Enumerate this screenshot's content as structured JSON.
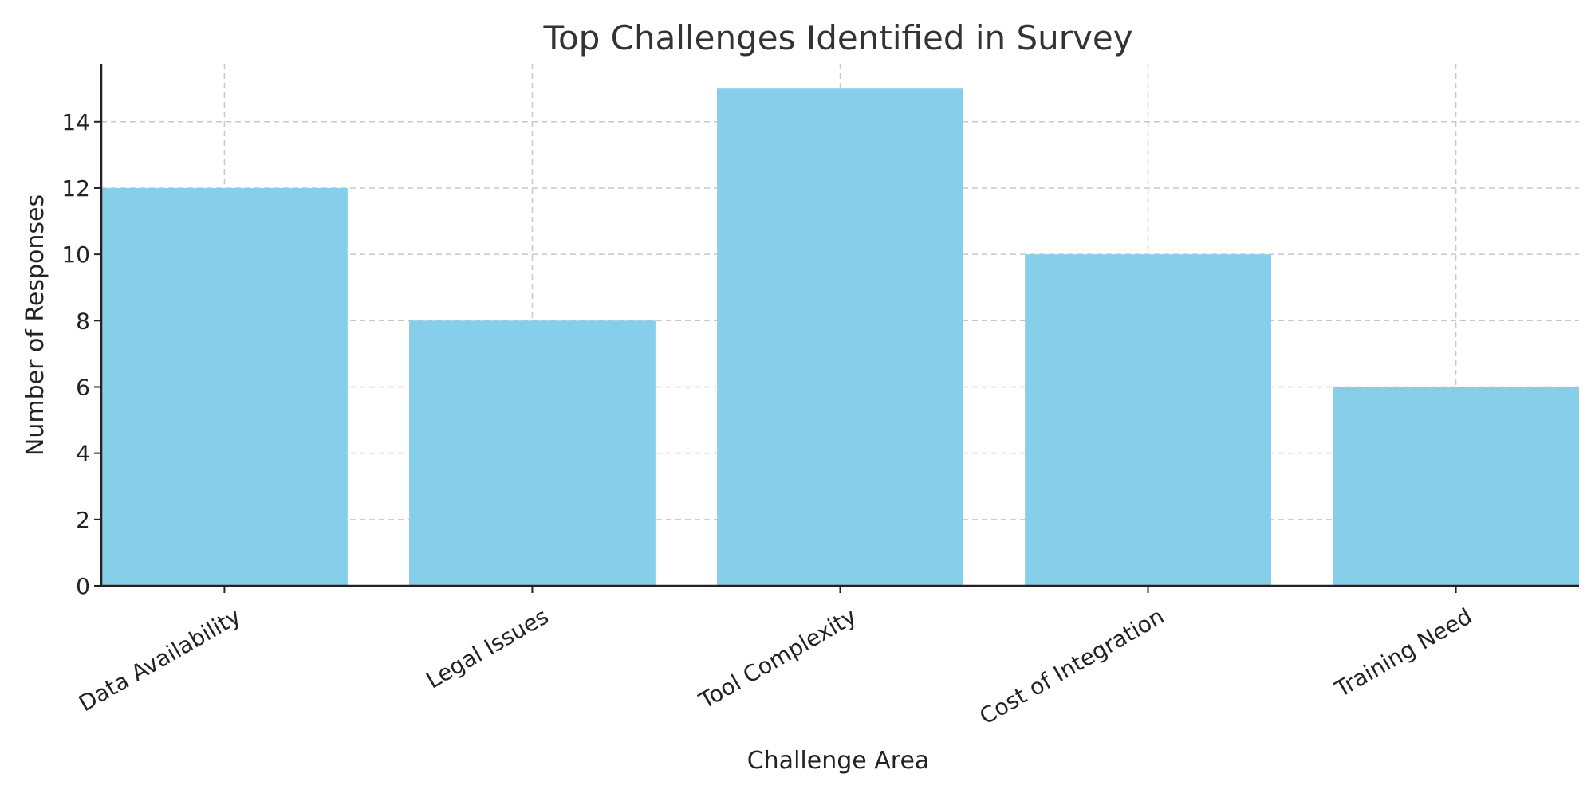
{
  "chart_data": {
    "type": "bar",
    "title": "Top Challenges Identified in Survey",
    "xlabel": "Challenge Area",
    "ylabel": "Number of Responses",
    "categories": [
      "Data Availability",
      "Legal Issues",
      "Tool Complexity",
      "Cost of Integration",
      "Training Need"
    ],
    "values": [
      12,
      8,
      15,
      10,
      6
    ],
    "ylim": [
      0,
      15.75
    ],
    "yticks": [
      0,
      2,
      4,
      6,
      8,
      10,
      12,
      14
    ],
    "grid": true,
    "bar_color": "#87CEEB",
    "xtick_rotation_deg": 30
  }
}
